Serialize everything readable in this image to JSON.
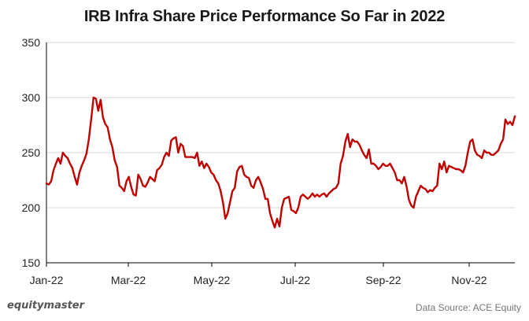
{
  "header": {
    "title": "IRB Infra Share Price Performance So Far in 2022"
  },
  "footer": {
    "brand": "equitymaster",
    "source": "Data Source: ACE Equity"
  },
  "colors": {
    "line": "#C00000",
    "grid": "#D9D9D9",
    "axis": "#000000"
  },
  "chart_data": {
    "type": "line",
    "title": "IRB Infra Share Price Performance So Far in 2022",
    "xlabel": "",
    "ylabel": "",
    "ylim": [
      150,
      350
    ],
    "yticks": [
      150,
      200,
      250,
      300,
      350
    ],
    "xticks": [
      "Jan-22",
      "Mar-22",
      "May-22",
      "Jul-22",
      "Sep-22",
      "Nov-22"
    ],
    "grid": "horizontal",
    "legend": "none",
    "series": [
      {
        "values": [
          [
            0,
            222
          ],
          [
            1,
            221
          ],
          [
            2,
            224
          ],
          [
            3,
            234
          ],
          [
            4,
            240
          ],
          [
            5,
            245
          ],
          [
            6,
            240
          ],
          [
            7,
            250
          ],
          [
            8,
            247
          ],
          [
            9,
            245
          ],
          [
            10,
            240
          ],
          [
            11,
            236
          ],
          [
            12,
            228
          ],
          [
            13,
            221
          ],
          [
            14,
            232
          ],
          [
            15,
            238
          ],
          [
            16,
            243
          ],
          [
            17,
            249
          ],
          [
            18,
            262
          ],
          [
            19,
            280
          ],
          [
            20,
            300
          ],
          [
            21,
            299
          ],
          [
            22,
            288
          ],
          [
            23,
            298
          ],
          [
            24,
            282
          ],
          [
            25,
            276
          ],
          [
            26,
            273
          ],
          [
            27,
            262
          ],
          [
            28,
            255
          ],
          [
            29,
            243
          ],
          [
            30,
            237
          ],
          [
            31,
            220
          ],
          [
            32,
            218
          ],
          [
            33,
            215
          ],
          [
            34,
            224
          ],
          [
            35,
            228
          ],
          [
            36,
            219
          ],
          [
            37,
            212
          ],
          [
            38,
            211
          ],
          [
            39,
            230
          ],
          [
            40,
            226
          ],
          [
            41,
            220
          ],
          [
            42,
            219
          ],
          [
            43,
            223
          ],
          [
            44,
            228
          ],
          [
            45,
            226
          ],
          [
            46,
            224
          ],
          [
            47,
            234
          ],
          [
            48,
            236
          ],
          [
            49,
            239
          ],
          [
            50,
            246
          ],
          [
            51,
            250
          ],
          [
            52,
            247
          ],
          [
            53,
            261
          ],
          [
            54,
            263
          ],
          [
            55,
            264
          ],
          [
            56,
            250
          ],
          [
            57,
            258
          ],
          [
            58,
            256
          ],
          [
            59,
            246
          ],
          [
            60,
            246
          ],
          [
            61,
            246
          ],
          [
            62,
            246
          ],
          [
            63,
            245
          ],
          [
            64,
            250
          ],
          [
            65,
            238
          ],
          [
            66,
            242
          ],
          [
            67,
            236
          ],
          [
            68,
            240
          ],
          [
            69,
            237
          ],
          [
            70,
            232
          ],
          [
            71,
            230
          ],
          [
            72,
            225
          ],
          [
            73,
            222
          ],
          [
            74,
            215
          ],
          [
            75,
            205
          ],
          [
            76,
            190
          ],
          [
            77,
            195
          ],
          [
            78,
            205
          ],
          [
            79,
            215
          ],
          [
            80,
            218
          ],
          [
            81,
            233
          ],
          [
            82,
            237
          ],
          [
            83,
            238
          ],
          [
            84,
            230
          ],
          [
            85,
            228
          ],
          [
            86,
            227
          ],
          [
            87,
            220
          ],
          [
            88,
            218
          ],
          [
            89,
            225
          ],
          [
            90,
            228
          ],
          [
            91,
            223
          ],
          [
            92,
            217
          ],
          [
            93,
            208
          ],
          [
            94,
            208
          ],
          [
            95,
            195
          ],
          [
            96,
            188
          ],
          [
            97,
            182
          ],
          [
            98,
            190
          ],
          [
            99,
            183
          ],
          [
            100,
            200
          ],
          [
            101,
            208
          ],
          [
            102,
            209
          ],
          [
            103,
            210
          ],
          [
            104,
            198
          ],
          [
            105,
            197
          ],
          [
            106,
            195
          ],
          [
            107,
            200
          ],
          [
            108,
            210
          ],
          [
            109,
            212
          ],
          [
            110,
            210
          ],
          [
            111,
            208
          ],
          [
            112,
            210
          ],
          [
            113,
            213
          ],
          [
            114,
            210
          ],
          [
            115,
            212
          ],
          [
            116,
            210
          ],
          [
            117,
            212
          ],
          [
            118,
            213
          ],
          [
            119,
            210
          ],
          [
            120,
            213
          ],
          [
            121,
            215
          ],
          [
            122,
            217
          ],
          [
            123,
            218
          ],
          [
            124,
            222
          ],
          [
            125,
            240
          ],
          [
            126,
            247
          ],
          [
            127,
            260
          ],
          [
            128,
            267
          ],
          [
            129,
            255
          ],
          [
            130,
            262
          ],
          [
            131,
            260
          ],
          [
            132,
            260
          ],
          [
            133,
            257
          ],
          [
            134,
            252
          ],
          [
            135,
            248
          ],
          [
            136,
            245
          ],
          [
            137,
            253
          ],
          [
            138,
            240
          ],
          [
            139,
            240
          ],
          [
            140,
            238
          ],
          [
            141,
            235
          ],
          [
            142,
            237
          ],
          [
            143,
            240
          ],
          [
            144,
            238
          ],
          [
            145,
            238
          ],
          [
            146,
            240
          ],
          [
            147,
            236
          ],
          [
            148,
            232
          ],
          [
            149,
            225
          ],
          [
            150,
            225
          ],
          [
            151,
            222
          ],
          [
            152,
            228
          ],
          [
            153,
            219
          ],
          [
            154,
            207
          ],
          [
            155,
            202
          ],
          [
            156,
            200
          ],
          [
            157,
            210
          ],
          [
            158,
            215
          ],
          [
            159,
            220
          ],
          [
            160,
            218
          ],
          [
            161,
            217
          ],
          [
            162,
            214
          ],
          [
            163,
            216
          ],
          [
            164,
            215
          ],
          [
            165,
            218
          ],
          [
            166,
            220
          ],
          [
            167,
            240
          ],
          [
            168,
            235
          ],
          [
            169,
            242
          ],
          [
            170,
            232
          ],
          [
            171,
            238
          ],
          [
            172,
            237
          ],
          [
            173,
            236
          ],
          [
            174,
            235
          ],
          [
            175,
            235
          ],
          [
            176,
            234
          ],
          [
            177,
            232
          ],
          [
            178,
            238
          ],
          [
            179,
            250
          ],
          [
            180,
            260
          ],
          [
            181,
            262
          ],
          [
            182,
            252
          ],
          [
            183,
            248
          ],
          [
            184,
            247
          ],
          [
            185,
            245
          ],
          [
            186,
            252
          ],
          [
            187,
            250
          ],
          [
            188,
            250
          ],
          [
            189,
            248
          ],
          [
            190,
            248
          ],
          [
            191,
            250
          ],
          [
            192,
            252
          ],
          [
            193,
            258
          ],
          [
            194,
            262
          ],
          [
            195,
            280
          ],
          [
            196,
            276
          ],
          [
            197,
            278
          ],
          [
            198,
            275
          ],
          [
            199,
            283
          ]
        ]
      }
    ]
  }
}
